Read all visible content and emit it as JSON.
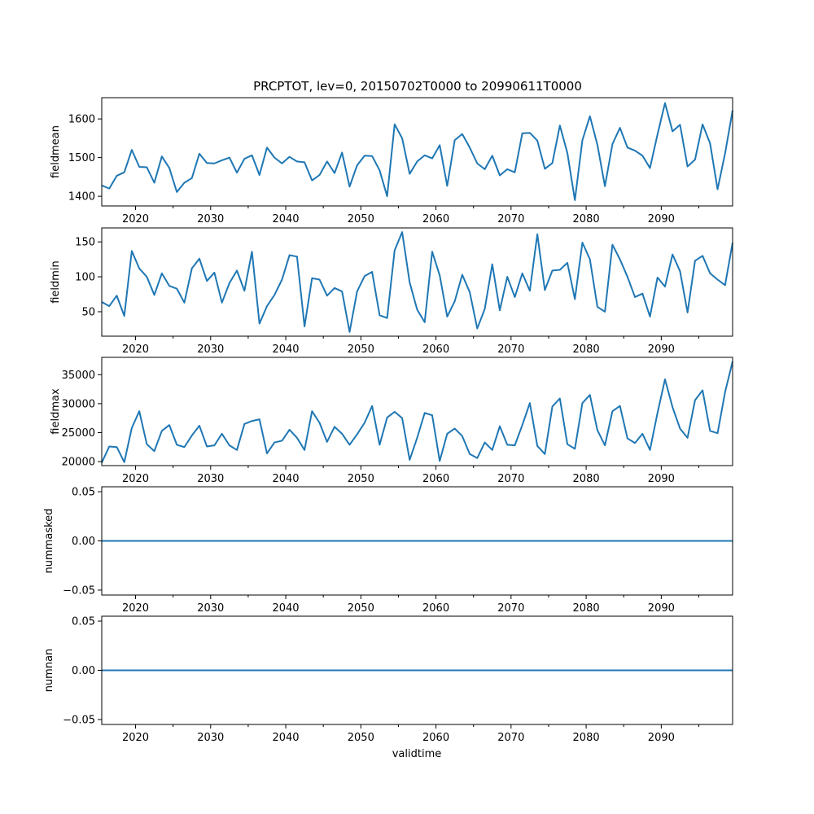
{
  "chart_data": {
    "type": "line",
    "title": "PRCPTOT, lev=0, 20150702T0000 to 20990611T0000",
    "xlabel": "validtime",
    "xlim": [
      2015.5,
      2099.5
    ],
    "x": [
      2015.5,
      2016.5,
      2017.5,
      2018.5,
      2019.5,
      2020.5,
      2021.5,
      2022.5,
      2023.5,
      2024.5,
      2025.5,
      2026.5,
      2027.5,
      2028.5,
      2029.5,
      2030.5,
      2031.5,
      2032.5,
      2033.5,
      2034.5,
      2035.5,
      2036.5,
      2037.5,
      2038.5,
      2039.5,
      2040.5,
      2041.5,
      2042.5,
      2043.5,
      2044.5,
      2045.5,
      2046.5,
      2047.5,
      2048.5,
      2049.5,
      2050.5,
      2051.5,
      2052.5,
      2053.5,
      2054.5,
      2055.5,
      2056.5,
      2057.5,
      2058.5,
      2059.5,
      2060.5,
      2061.5,
      2062.5,
      2063.5,
      2064.5,
      2065.5,
      2066.5,
      2067.5,
      2068.5,
      2069.5,
      2070.5,
      2071.5,
      2072.5,
      2073.5,
      2074.5,
      2075.5,
      2076.5,
      2077.5,
      2078.5,
      2079.5,
      2080.5,
      2081.5,
      2082.5,
      2083.5,
      2084.5,
      2085.5,
      2086.5,
      2087.5,
      2088.5,
      2089.5,
      2090.5,
      2091.5,
      2092.5,
      2093.5,
      2094.5,
      2095.5,
      2096.5,
      2097.5,
      2098.5,
      2099.5
    ],
    "xticks": [
      2020,
      2030,
      2040,
      2050,
      2060,
      2070,
      2080,
      2090
    ],
    "xtick_labels": [
      "2020",
      "2030",
      "2040",
      "2050",
      "2060",
      "2070",
      "2080",
      "2090"
    ],
    "minor_xticks": [
      2025,
      2035,
      2045,
      2055,
      2065,
      2075,
      2085,
      2095
    ],
    "line_color": "#1f77b4",
    "series": [
      {
        "name": "fieldmean",
        "ylim": [
          1375,
          1655
        ],
        "yticks": [
          1400,
          1500,
          1600
        ],
        "ytick_labels": [
          "1400",
          "1500",
          "1600"
        ],
        "values": [
          1428,
          1420,
          1453,
          1462,
          1520,
          1476,
          1475,
          1435,
          1503,
          1473,
          1411,
          1435,
          1447,
          1510,
          1486,
          1485,
          1493,
          1500,
          1461,
          1497,
          1506,
          1455,
          1526,
          1500,
          1485,
          1502,
          1490,
          1488,
          1441,
          1455,
          1490,
          1460,
          1513,
          1425,
          1480,
          1505,
          1504,
          1467,
          1400,
          1586,
          1550,
          1458,
          1490,
          1506,
          1498,
          1532,
          1427,
          1545,
          1561,
          1526,
          1485,
          1470,
          1505,
          1454,
          1470,
          1462,
          1563,
          1564,
          1544,
          1471,
          1486,
          1583,
          1512,
          1390,
          1545,
          1607,
          1533,
          1426,
          1535,
          1577,
          1526,
          1518,
          1505,
          1473,
          1560,
          1641,
          1568,
          1585,
          1477,
          1495,
          1586,
          1537,
          1418,
          1511,
          1622
        ]
      },
      {
        "name": "fieldmin",
        "ylim": [
          15,
          170
        ],
        "yticks": [
          50,
          100,
          150
        ],
        "ytick_labels": [
          "50",
          "100",
          "150"
        ],
        "values": [
          64,
          58,
          73,
          44,
          137,
          112,
          100,
          74,
          105,
          87,
          83,
          63,
          112,
          126,
          94,
          106,
          63,
          91,
          109,
          80,
          136,
          33,
          58,
          74,
          96,
          131,
          129,
          29,
          98,
          96,
          73,
          84,
          79,
          21,
          79,
          101,
          107,
          45,
          41,
          138,
          164,
          92,
          53,
          35,
          136,
          102,
          43,
          65,
          103,
          78,
          26,
          54,
          118,
          52,
          100,
          71,
          105,
          80,
          161,
          81,
          109,
          110,
          120,
          68,
          149,
          125,
          57,
          50,
          146,
          125,
          100,
          71,
          76,
          43,
          99,
          86,
          132,
          108,
          49,
          123,
          130,
          105,
          96,
          88,
          149
        ]
      },
      {
        "name": "fieldmax",
        "ylim": [
          19300,
          38000
        ],
        "yticks": [
          20000,
          25000,
          30000,
          35000
        ],
        "ytick_labels": [
          "20000",
          "25000",
          "30000",
          "35000"
        ],
        "values": [
          19800,
          22600,
          22500,
          19900,
          25800,
          28700,
          23000,
          21800,
          25300,
          26300,
          22900,
          22500,
          24500,
          26200,
          22600,
          22800,
          24800,
          22800,
          22000,
          26500,
          27000,
          27300,
          21400,
          23300,
          23600,
          25500,
          24100,
          22000,
          28700,
          26700,
          23400,
          26000,
          24800,
          22900,
          24700,
          26700,
          29600,
          22900,
          27600,
          28600,
          27500,
          20300,
          24100,
          28400,
          28000,
          20100,
          24800,
          25700,
          24400,
          21300,
          20600,
          23300,
          22000,
          26100,
          22900,
          22800,
          26300,
          30100,
          22700,
          21300,
          29500,
          30900,
          23000,
          22200,
          30100,
          31500,
          25400,
          22800,
          28700,
          29600,
          24000,
          23200,
          24800,
          22000,
          28400,
          34200,
          29400,
          25700,
          24100,
          30600,
          32300,
          25300,
          24900,
          32000,
          37300
        ]
      },
      {
        "name": "nummasked",
        "ylim": [
          -0.055,
          0.055
        ],
        "yticks": [
          -0.05,
          0.0,
          0.05
        ],
        "ytick_labels": [
          "−0.05",
          "0.00",
          "0.05"
        ],
        "values": "zeros"
      },
      {
        "name": "numnan",
        "ylim": [
          -0.055,
          0.055
        ],
        "yticks": [
          -0.05,
          0.0,
          0.05
        ],
        "ytick_labels": [
          "−0.05",
          "0.00",
          "0.05"
        ],
        "values": "zeros"
      }
    ]
  }
}
